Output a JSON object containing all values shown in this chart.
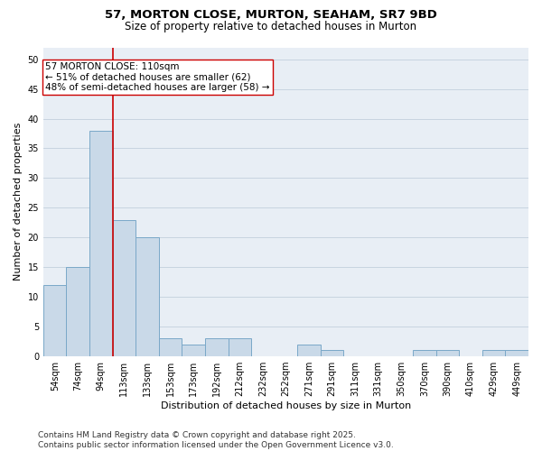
{
  "title_line1": "57, MORTON CLOSE, MURTON, SEAHAM, SR7 9BD",
  "title_line2": "Size of property relative to detached houses in Murton",
  "xlabel": "Distribution of detached houses by size in Murton",
  "ylabel": "Number of detached properties",
  "categories": [
    "54sqm",
    "74sqm",
    "94sqm",
    "113sqm",
    "133sqm",
    "153sqm",
    "173sqm",
    "192sqm",
    "212sqm",
    "232sqm",
    "252sqm",
    "271sqm",
    "291sqm",
    "311sqm",
    "331sqm",
    "350sqm",
    "370sqm",
    "390sqm",
    "410sqm",
    "429sqm",
    "449sqm"
  ],
  "values": [
    12,
    15,
    38,
    23,
    20,
    3,
    2,
    3,
    3,
    0,
    0,
    2,
    1,
    0,
    0,
    0,
    1,
    1,
    0,
    1,
    1
  ],
  "bar_color": "#c9d9e8",
  "bar_edge_color": "#7aa8c8",
  "vline_x": 2.5,
  "vline_color": "#cc0000",
  "annotation_text": "57 MORTON CLOSE: 110sqm\n← 51% of detached houses are smaller (62)\n48% of semi-detached houses are larger (58) →",
  "annotation_box_color": "#ffffff",
  "annotation_box_edge_color": "#cc0000",
  "ylim": [
    0,
    52
  ],
  "yticks": [
    0,
    5,
    10,
    15,
    20,
    25,
    30,
    35,
    40,
    45,
    50
  ],
  "grid_color": "#c8d4e0",
  "bg_color": "#e8eef5",
  "footer": "Contains HM Land Registry data © Crown copyright and database right 2025.\nContains public sector information licensed under the Open Government Licence v3.0.",
  "title_fontsize": 9.5,
  "subtitle_fontsize": 8.5,
  "axis_label_fontsize": 8,
  "tick_fontsize": 7,
  "annotation_fontsize": 7.5,
  "footer_fontsize": 6.5
}
